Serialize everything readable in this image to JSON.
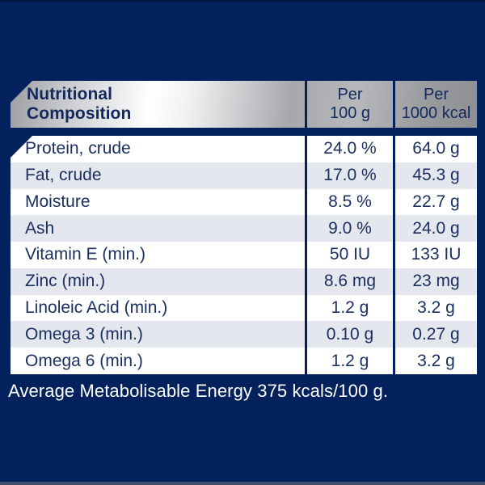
{
  "colors": {
    "background_navy": "#03215c",
    "text_navy": "#1b2f60",
    "alt_row": "#e4e7ee",
    "silver_light": "#ffffff",
    "silver_dark": "#8d8f93",
    "note_text": "#ffffff"
  },
  "table": {
    "header": {
      "title_line1": "Nutritional",
      "title_line2": "Composition",
      "per_100g_line1": "Per",
      "per_100g_line2": "100 g",
      "per_1000kcal_line1": "Per",
      "per_1000kcal_line2": "1000 kcal"
    },
    "rows": [
      {
        "label": "Protein, crude",
        "per100g": "24.0 %",
        "per1000kcal": "64.0 g"
      },
      {
        "label": "Fat, crude",
        "per100g": "17.0 %",
        "per1000kcal": "45.3 g"
      },
      {
        "label": "Moisture",
        "per100g": "8.5 %",
        "per1000kcal": "22.7 g"
      },
      {
        "label": "Ash",
        "per100g": "9.0 %",
        "per1000kcal": "24.0 g"
      },
      {
        "label": "Vitamin E (min.)",
        "per100g": "50 IU",
        "per1000kcal": "133 IU"
      },
      {
        "label": "Zinc (min.)",
        "per100g": "8.6 mg",
        "per1000kcal": "23 mg"
      },
      {
        "label": "Linoleic Acid (min.)",
        "per100g": "1.2 g",
        "per1000kcal": "3.2 g"
      },
      {
        "label": "Omega 3 (min.)",
        "per100g": "0.10 g",
        "per1000kcal": "0.27 g"
      },
      {
        "label": "Omega 6 (min.)",
        "per100g": "1.2 g",
        "per1000kcal": "3.2 g"
      }
    ]
  },
  "footer": {
    "energy_note": "Average Metabolisable Energy 375 kcals/100 g."
  }
}
